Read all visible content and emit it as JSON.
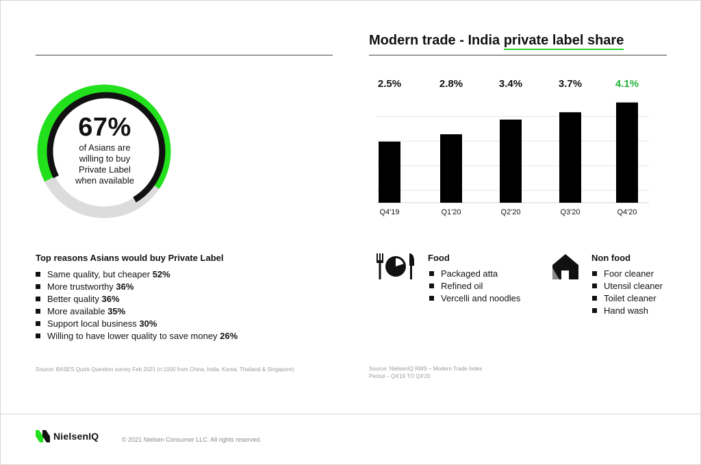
{
  "donut": {
    "percent_label": "67%",
    "percent_value": 67,
    "caption_lines": [
      "of Asians are",
      "willing to buy",
      "Private Label",
      "when available"
    ],
    "colors": {
      "green": "#22e01c",
      "black": "#111111",
      "grey": "#dcdcdc"
    }
  },
  "reasons": {
    "title": "Top reasons Asians would buy Private Label",
    "items": [
      {
        "text": "Same quality, but cheaper ",
        "value": "52%"
      },
      {
        "text": "More trustworthy ",
        "value": "36%"
      },
      {
        "text": "Better quality ",
        "value": "36%"
      },
      {
        "text": "More available ",
        "value": "35%"
      },
      {
        "text": "Support local business ",
        "value": "30%"
      },
      {
        "text": "Willing to have lower quality to save money ",
        "value": "26%"
      }
    ]
  },
  "left_source": "Source: BASES Quick Question survey Feb 2021 (n:1000 from China, India, Korea, Thailand & Singapore)",
  "chart": {
    "title_prefix": "Modern trade - India ",
    "title_highlight": "private label share"
  },
  "chart_data": {
    "type": "bar",
    "title": "Modern trade - India private label share",
    "categories": [
      "Q4'19",
      "Q1'20",
      "Q2'20",
      "Q3'20",
      "Q4'20"
    ],
    "values": [
      2.5,
      2.8,
      3.4,
      3.7,
      4.1
    ],
    "value_labels": [
      "2.5%",
      "2.8%",
      "3.4%",
      "3.7%",
      "4.1%"
    ],
    "bar_color": "#000000",
    "highlight_label_color": "#22b33a",
    "grid": true
  },
  "food": {
    "title": "Food",
    "items": [
      "Packaged atta",
      "Refined oil",
      "Vercelli and noodles"
    ]
  },
  "nonfood": {
    "title": "Non food",
    "items": [
      "Foor cleaner",
      "Utensil cleaner",
      "Toilet cleaner",
      "Hand wash"
    ]
  },
  "right_source": [
    "Source: NielsenIQ RMS – Modern Trade Index",
    "Period – Q4'19 TO Q4'20"
  ],
  "footer": {
    "brand": "NielsenIQ",
    "copyright": "© 2021 Nielsen Consumer LLC. All rights reserved."
  }
}
